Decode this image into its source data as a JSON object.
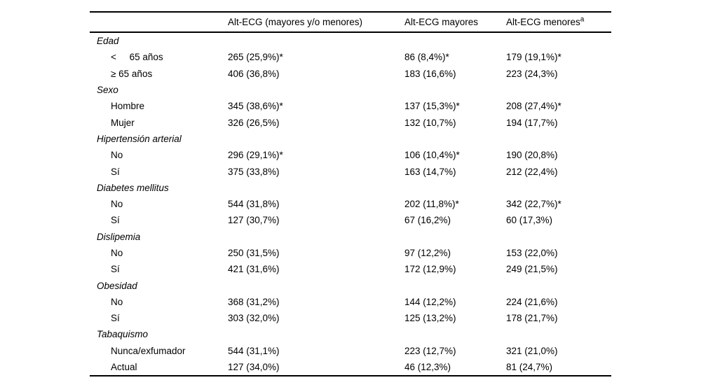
{
  "table": {
    "header": {
      "col1": "",
      "col2": "Alt-ECG (mayores y/o menores)",
      "col3": "Alt-ECG mayores",
      "col4_text": "Alt-ECG menores",
      "col4_sup": "a"
    },
    "rows": [
      {
        "type": "category",
        "label": "Edad"
      },
      {
        "type": "data",
        "label": "<     65 años",
        "values": [
          "265 (25,9%)*",
          "86 (8,4%)*",
          "179 (19,1%)*"
        ]
      },
      {
        "type": "data",
        "label": "≥ 65 años",
        "values": [
          "406 (36,8%)",
          "183 (16,6%)",
          "223 (24,3%)"
        ]
      },
      {
        "type": "category",
        "label": "Sexo"
      },
      {
        "type": "data",
        "label": "Hombre",
        "values": [
          "345 (38,6%)*",
          "137 (15,3%)*",
          "208 (27,4%)*"
        ]
      },
      {
        "type": "data",
        "label": "Mujer",
        "values": [
          "326 (26,5%)",
          "132 (10,7%)",
          "194 (17,7%)"
        ]
      },
      {
        "type": "category",
        "label": "Hipertensión arterial"
      },
      {
        "type": "data",
        "label": "No",
        "values": [
          "296 (29,1%)*",
          "106 (10,4%)*",
          "190 (20,8%)"
        ]
      },
      {
        "type": "data",
        "label": "Sí",
        "values": [
          "375 (33,8%)",
          "163 (14,7%)",
          "212 (22,4%)"
        ]
      },
      {
        "type": "category",
        "label": "Diabetes mellitus"
      },
      {
        "type": "data",
        "label": "No",
        "values": [
          "544 (31,8%)",
          "202 (11,8%)*",
          "342 (22,7%)*"
        ]
      },
      {
        "type": "data",
        "label": "Sí",
        "values": [
          "127 (30,7%)",
          "67 (16,2%)",
          "60 (17,3%)"
        ]
      },
      {
        "type": "category",
        "label": "Dislipemia"
      },
      {
        "type": "data",
        "label": "No",
        "values": [
          "250 (31,5%)",
          "97 (12,2%)",
          "153 (22,0%)"
        ]
      },
      {
        "type": "data",
        "label": "Sí",
        "values": [
          "421 (31,6%)",
          "172 (12,9%)",
          "249 (21,5%)"
        ]
      },
      {
        "type": "category",
        "label": "Obesidad"
      },
      {
        "type": "data",
        "label": "No",
        "values": [
          "368 (31,2%)",
          "144 (12,2%)",
          "224 (21,6%)"
        ]
      },
      {
        "type": "data",
        "label": "Sí",
        "values": [
          "303 (32,0%)",
          "125 (13,2%)",
          "178 (21,7%)"
        ]
      },
      {
        "type": "category",
        "label": "Tabaquismo"
      },
      {
        "type": "data",
        "label": "Nunca/exfumador",
        "values": [
          "544 (31,1%)",
          "223 (12,7%)",
          "321 (21,0%)"
        ]
      },
      {
        "type": "data",
        "label": "Actual",
        "values": [
          "127 (34,0%)",
          "46 (12,3%)",
          "81 (24,7%)"
        ]
      }
    ]
  }
}
